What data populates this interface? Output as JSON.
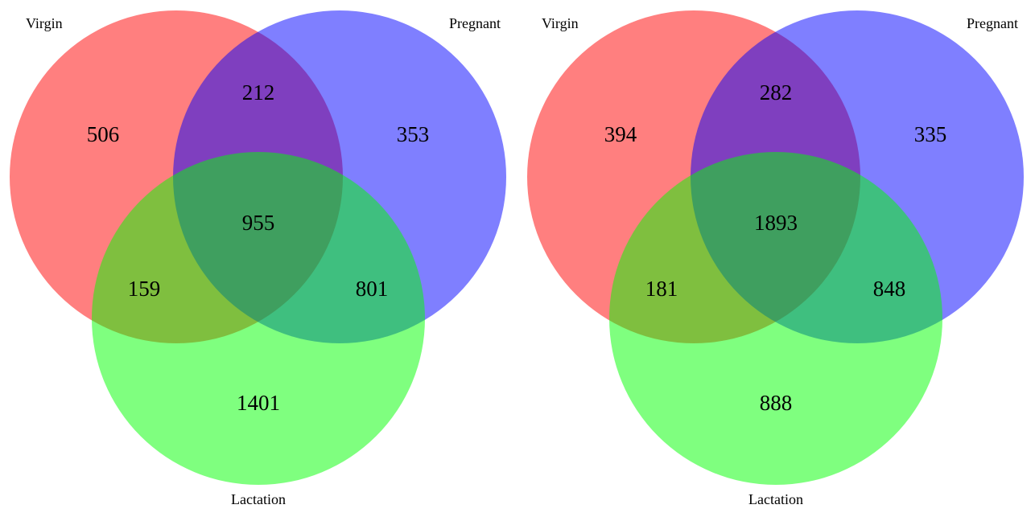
{
  "colors": {
    "set_a": "#ff0000",
    "set_b": "#0000ff",
    "set_c": "#00ff00",
    "fill_opacity": 0.5
  },
  "diagrams": [
    {
      "set_labels": {
        "a": "Virgin",
        "b": "Pregnant",
        "c": "Lactation"
      },
      "counts": {
        "a_only": "506",
        "b_only": "353",
        "c_only": "1401",
        "ab": "212",
        "ac": "159",
        "bc": "801",
        "abc": "955"
      }
    },
    {
      "set_labels": {
        "a": "Virgin",
        "b": "Pregnant",
        "c": "Lactation"
      },
      "counts": {
        "a_only": "394",
        "b_only": "335",
        "c_only": "888",
        "ab": "282",
        "ac": "181",
        "bc": "848",
        "abc": "1893"
      }
    }
  ]
}
